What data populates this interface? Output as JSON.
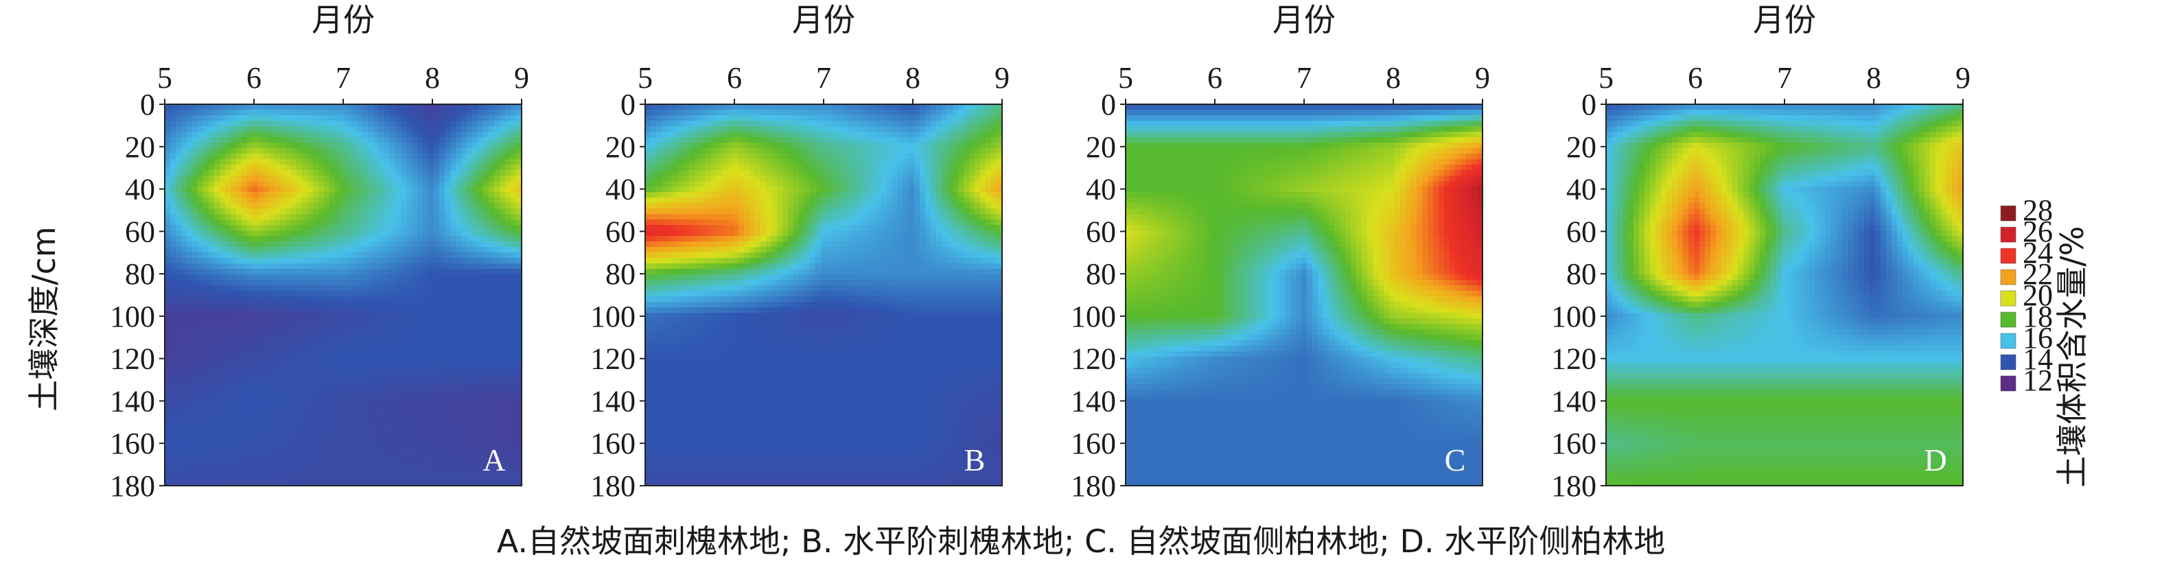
{
  "chart_data": {
    "type": "heatmap",
    "x_axis_label": "月份",
    "x_ticks": [
      5,
      6,
      7,
      8,
      9
    ],
    "y_axis_label": "土壤深度/cm",
    "y_ticks": [
      0,
      20,
      40,
      60,
      80,
      100,
      120,
      140,
      160,
      180
    ],
    "ylim": [
      0,
      180
    ],
    "xlim": [
      5,
      9
    ],
    "colorbar": {
      "label": "土壤体积含水量/%",
      "levels": [
        28,
        26,
        24,
        22,
        20,
        18,
        16,
        14,
        12
      ],
      "colors": {
        "28": "#8e1b20",
        "26": "#d2222a",
        "24": "#ee3325",
        "22": "#f4a21e",
        "20": "#d9e01c",
        "18": "#57b92d",
        "16": "#48c1ea",
        "14": "#2f55b0",
        "12": "#5b2d86"
      }
    },
    "panels": [
      {
        "label": "A",
        "months": [
          5,
          6,
          7,
          8,
          9
        ],
        "depths": [
          0,
          20,
          40,
          60,
          80,
          100,
          120,
          140,
          160,
          180
        ],
        "values": [
          [
            14,
            15,
            15,
            13,
            15
          ],
          [
            15,
            19,
            17,
            14,
            18
          ],
          [
            16,
            23,
            18,
            15,
            21
          ],
          [
            15,
            19,
            17,
            15,
            18
          ],
          [
            14,
            15,
            15,
            14,
            14
          ],
          [
            13,
            13,
            13.5,
            14,
            14
          ],
          [
            13,
            13.5,
            14,
            14,
            14
          ],
          [
            13.5,
            14,
            13.5,
            13.2,
            13
          ],
          [
            14,
            13.8,
            13.5,
            13.3,
            13
          ],
          [
            13.5,
            13.5,
            13.5,
            13.5,
            13.5
          ]
        ]
      },
      {
        "label": "B",
        "months": [
          5,
          6,
          7,
          8,
          9
        ],
        "depths": [
          0,
          20,
          40,
          60,
          80,
          100,
          120,
          140,
          160,
          180
        ],
        "values": [
          [
            14,
            15,
            15,
            14,
            17
          ],
          [
            16,
            19,
            17,
            16,
            19
          ],
          [
            18,
            21,
            18,
            15,
            22
          ],
          [
            25,
            23,
            16,
            15,
            18
          ],
          [
            18,
            17,
            15,
            15,
            15
          ],
          [
            14.5,
            14,
            13.5,
            14,
            14
          ],
          [
            14,
            14,
            14,
            14,
            14
          ],
          [
            14,
            14,
            14,
            14,
            13.5
          ],
          [
            14,
            14,
            14,
            14,
            13.3
          ],
          [
            13.5,
            13.5,
            13.5,
            13.5,
            13.5
          ]
        ]
      },
      {
        "label": "C",
        "months": [
          5,
          6,
          7,
          8,
          9
        ],
        "depths": [
          0,
          20,
          40,
          60,
          80,
          100,
          120,
          140,
          160,
          180
        ],
        "values": [
          [
            14,
            14,
            14,
            14,
            14
          ],
          [
            18,
            18,
            18,
            19,
            22
          ],
          [
            18,
            18,
            19,
            20,
            27
          ],
          [
            20,
            18,
            17,
            21,
            26
          ],
          [
            19,
            18,
            15,
            21,
            25
          ],
          [
            18,
            18,
            15,
            19,
            20
          ],
          [
            16,
            15,
            14.5,
            16,
            17
          ],
          [
            14.5,
            14.5,
            14.5,
            14.5,
            15
          ],
          [
            14.5,
            14.5,
            14.5,
            14.5,
            14.5
          ],
          [
            14.5,
            14.5,
            14.5,
            14.5,
            14.5
          ]
        ]
      },
      {
        "label": "D",
        "months": [
          5,
          6,
          7,
          8,
          9
        ],
        "depths": [
          0,
          20,
          40,
          60,
          80,
          100,
          120,
          140,
          160,
          180
        ],
        "values": [
          [
            14,
            15,
            15,
            15,
            17
          ],
          [
            16,
            20,
            18,
            17,
            21
          ],
          [
            16,
            22,
            16,
            15,
            22
          ],
          [
            16,
            24,
            17,
            14,
            20
          ],
          [
            16,
            23,
            16,
            14,
            17
          ],
          [
            15,
            17,
            16,
            14.5,
            15
          ],
          [
            16,
            16,
            16,
            16,
            16
          ],
          [
            18,
            18,
            18,
            18,
            18
          ],
          [
            17,
            17.5,
            17.5,
            17.5,
            17.5
          ],
          [
            18,
            18,
            18,
            18,
            18
          ]
        ]
      }
    ]
  },
  "caption": "A.自然坡面刺槐林地; B. 水平阶刺槐林地; C. 自然坡面侧柏林地; D. 水平阶侧柏林地"
}
